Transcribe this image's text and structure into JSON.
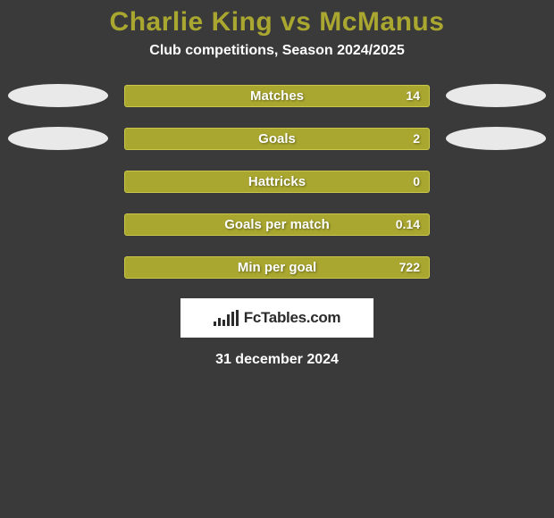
{
  "title": {
    "text": "Charlie King vs McManus",
    "color": "#a9a72f",
    "fontsize": 30
  },
  "subtitle": {
    "text": "Club competitions, Season 2024/2025",
    "color": "#ffffff",
    "fontsize": 16
  },
  "bar_style": {
    "fill": "#a9a72f",
    "border": "#c9c84a",
    "label_color": "#ffffff",
    "label_fontsize": 15,
    "value_color": "#ffffff",
    "value_fontsize": 14
  },
  "ellipse_color": "#e9e9e9",
  "stats": [
    {
      "label": "Matches",
      "value": "14",
      "left_ellipse": true,
      "right_ellipse": true
    },
    {
      "label": "Goals",
      "value": "2",
      "left_ellipse": true,
      "right_ellipse": true
    },
    {
      "label": "Hattricks",
      "value": "0",
      "left_ellipse": false,
      "right_ellipse": false
    },
    {
      "label": "Goals per match",
      "value": "0.14",
      "left_ellipse": false,
      "right_ellipse": false
    },
    {
      "label": "Min per goal",
      "value": "722",
      "left_ellipse": false,
      "right_ellipse": false
    }
  ],
  "logo": {
    "text": "FcTables.com",
    "box_bg": "#ffffff",
    "text_color": "#2b2b2b",
    "bar_color": "#2b2b2b"
  },
  "footer_date": {
    "text": "31 december 2024",
    "color": "#ffffff",
    "fontsize": 16
  },
  "background_color": "#3a3a3a"
}
